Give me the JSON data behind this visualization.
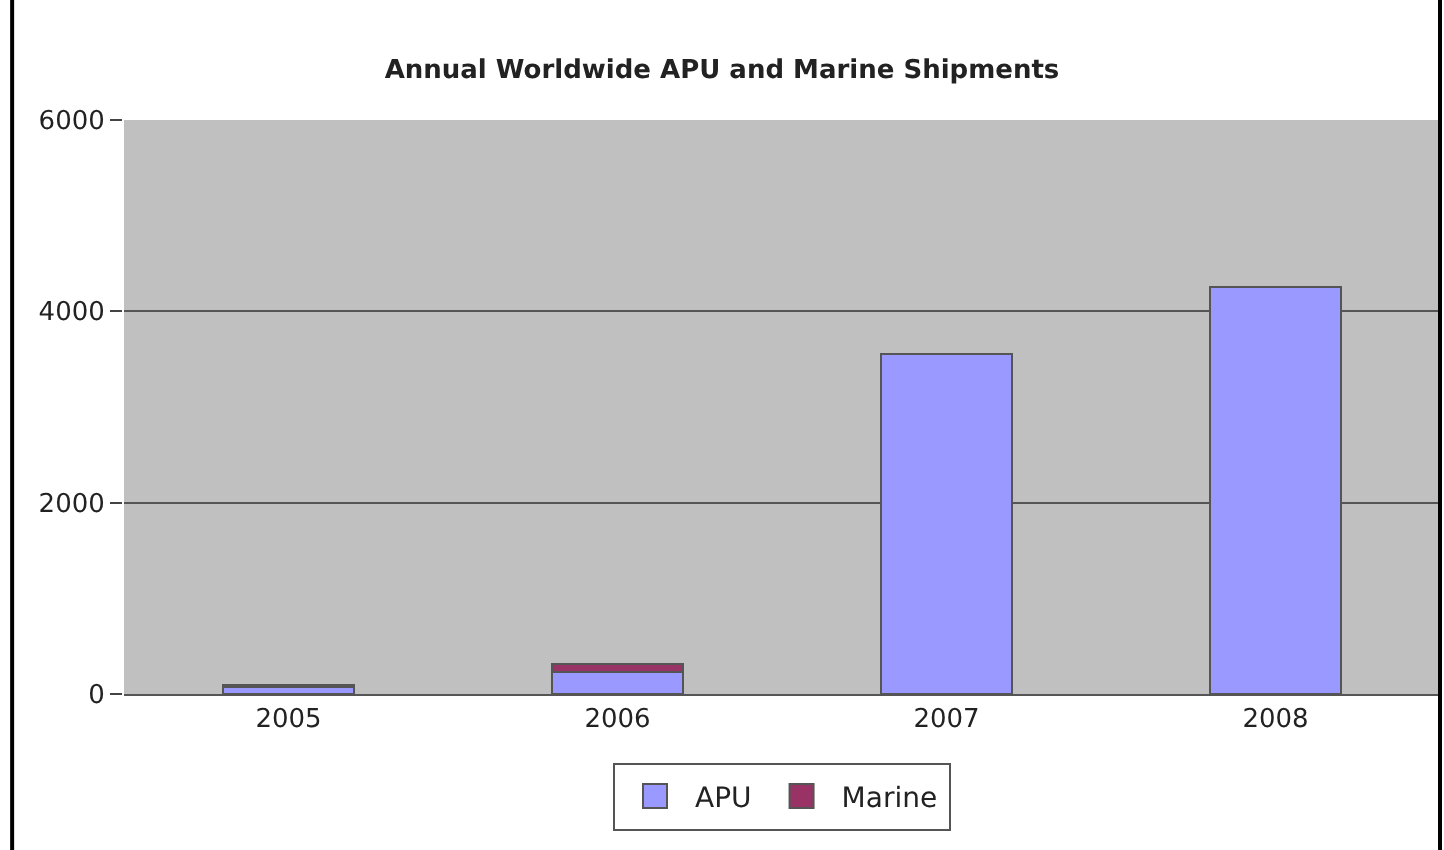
{
  "chart_data": {
    "type": "bar",
    "title": "Annual Worldwide APU and Marine Shipments",
    "categories": [
      "2005",
      "2006",
      "2007",
      "2008"
    ],
    "stacked": true,
    "series": [
      {
        "name": "APU",
        "color": "#9999ff",
        "values": [
          70,
          230,
          3550,
          4250
        ]
      },
      {
        "name": "Marine",
        "color": "#993366",
        "values": [
          20,
          80,
          null,
          null
        ]
      }
    ],
    "ylim": [
      0,
      6000
    ],
    "yticks": [
      0,
      2000,
      4000,
      6000
    ],
    "grid": "y",
    "legend": "bottom"
  }
}
